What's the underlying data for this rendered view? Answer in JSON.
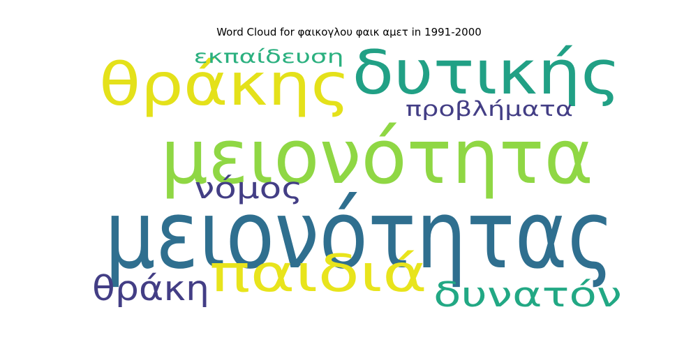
{
  "chart_data": {
    "type": "wordcloud",
    "title": "Word Cloud for φαικογλου φαικ αμετ in 1991-2000",
    "words": [
      {
        "text": "μειονότητας",
        "weight": 100,
        "color": "#2f6f8f"
      },
      {
        "text": "μειονότητα",
        "weight": 80,
        "color": "#8fd744"
      },
      {
        "text": "δυτικής",
        "weight": 64,
        "color": "#21a085"
      },
      {
        "text": "θράκης",
        "weight": 62,
        "color": "#e4e11a"
      },
      {
        "text": "παιδιά",
        "weight": 54,
        "color": "#e8e41c"
      },
      {
        "text": "δυνατόν",
        "weight": 36,
        "color": "#22a884"
      },
      {
        "text": "θράκη",
        "weight": 36,
        "color": "#433e85"
      },
      {
        "text": "νόμος",
        "weight": 31,
        "color": "#433e85"
      },
      {
        "text": "προβλήματα",
        "weight": 22,
        "color": "#433e85"
      },
      {
        "text": "εκπαίδευση",
        "weight": 20,
        "color": "#2bb07f"
      }
    ]
  }
}
